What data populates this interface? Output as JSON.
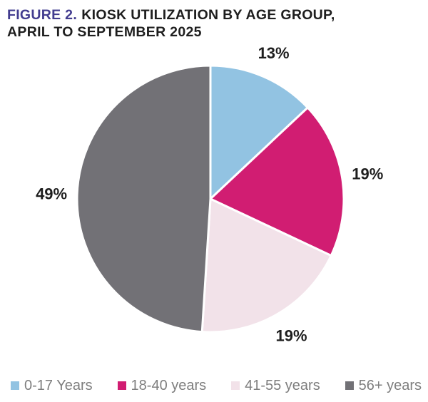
{
  "title": {
    "prefix": "FIGURE 2.",
    "line1_rest": "KIOSK UTILIZATION BY AGE GROUP,",
    "line2": "APRIL TO SEPTEMBER 2025"
  },
  "chart_data": {
    "type": "pie",
    "title": "FIGURE 2. KIOSK UTILIZATION BY AGE GROUP, APRIL TO SEPTEMBER 2025",
    "categories": [
      "0-17 Years",
      "18-40 years",
      "41-55 years",
      "56+ years"
    ],
    "values": [
      13,
      19,
      19,
      49
    ],
    "unit": "%",
    "value_labels": [
      "13%",
      "19%",
      "19%",
      "49%"
    ],
    "colors": [
      "#92C3E2",
      "#D11D72",
      "#F2E2E9",
      "#727176"
    ],
    "start_angle_deg": 0,
    "direction": "clockwise",
    "legend_position": "bottom",
    "slice_gap_color": "#FFFFFF"
  },
  "colors": {
    "figure_label": "#423C8F",
    "title_text": "#1E1E1E",
    "slice_label_text": "#1E1E1E",
    "legend_text": "#7E7E7E",
    "background": "#FFFFFF"
  }
}
